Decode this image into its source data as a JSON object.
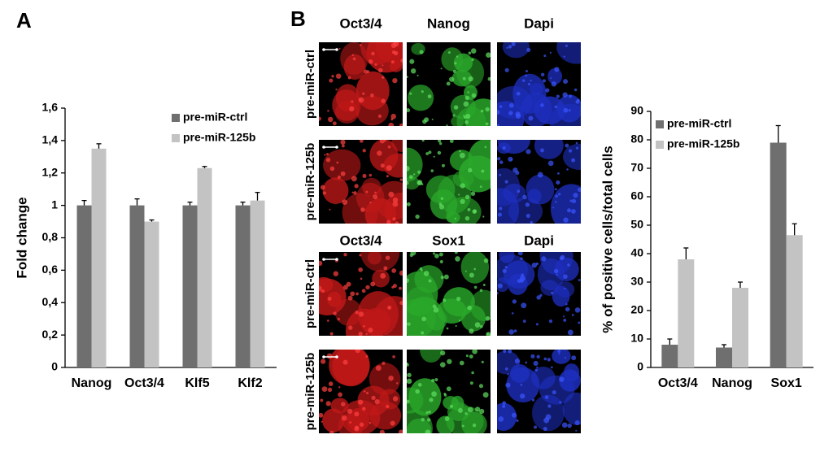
{
  "panel_labels": [
    "A",
    "B"
  ],
  "micrographs": [
    {
      "columns": [
        "Oct3/4",
        "Nanog",
        "Dapi"
      ],
      "rows": [
        "pre-miR-ctrl",
        "pre-miR-125b"
      ]
    },
    {
      "columns": [
        "Oct3/4",
        "Sox1",
        "Dapi"
      ],
      "rows": [
        "pre-miR-ctrl",
        "pre-miR-125b"
      ]
    }
  ],
  "chart_data": [
    {
      "type": "bar",
      "y_label": "Fold change",
      "categories": [
        "Nanog",
        "Oct3/4",
        "Klf5",
        "Klf2"
      ],
      "series": [
        {
          "name": "pre-miR-ctrl",
          "color": "#6f6f6f",
          "values": [
            1,
            1,
            1,
            1
          ],
          "errors": [
            0.03,
            0.04,
            0.02,
            0.02
          ]
        },
        {
          "name": "pre-miR-125b",
          "color": "#c3c3c3",
          "values": [
            1.35,
            0.9,
            1.23,
            1.03
          ],
          "errors": [
            0.03,
            0.01,
            0.01,
            0.05
          ]
        }
      ],
      "ylim": [
        0,
        1.6
      ],
      "yticks": [
        0,
        {
          "value": 0.2,
          "label": "0,2"
        },
        {
          "value": 0.4,
          "label": "0,4"
        },
        {
          "value": 0.6,
          "label": "0,6"
        },
        {
          "value": 0.8,
          "label": "0,8"
        },
        1,
        {
          "value": 1.2,
          "label": "1,2"
        },
        {
          "value": 1.4,
          "label": "1,4"
        },
        {
          "value": 1.6,
          "label": "1,6"
        }
      ],
      "grid": false,
      "legend": "upper right"
    },
    {
      "type": "bar",
      "y_label": "% of positive cells/total cells",
      "categories": [
        "Oct3/4",
        "Nanog",
        "Sox1"
      ],
      "series": [
        {
          "name": "pre-miR-ctrl",
          "color": "#6f6f6f",
          "values": [
            8,
            7,
            79
          ],
          "errors": [
            2,
            1,
            6
          ]
        },
        {
          "name": "pre-miR-125b",
          "color": "#c3c3c3",
          "values": [
            38,
            28,
            46.5
          ],
          "errors": [
            4,
            2,
            4
          ]
        }
      ],
      "ylim": [
        0,
        90
      ],
      "yticks": [
        0,
        10,
        20,
        30,
        40,
        50,
        60,
        70,
        80,
        90
      ],
      "grid": false,
      "legend": "upper left"
    }
  ]
}
